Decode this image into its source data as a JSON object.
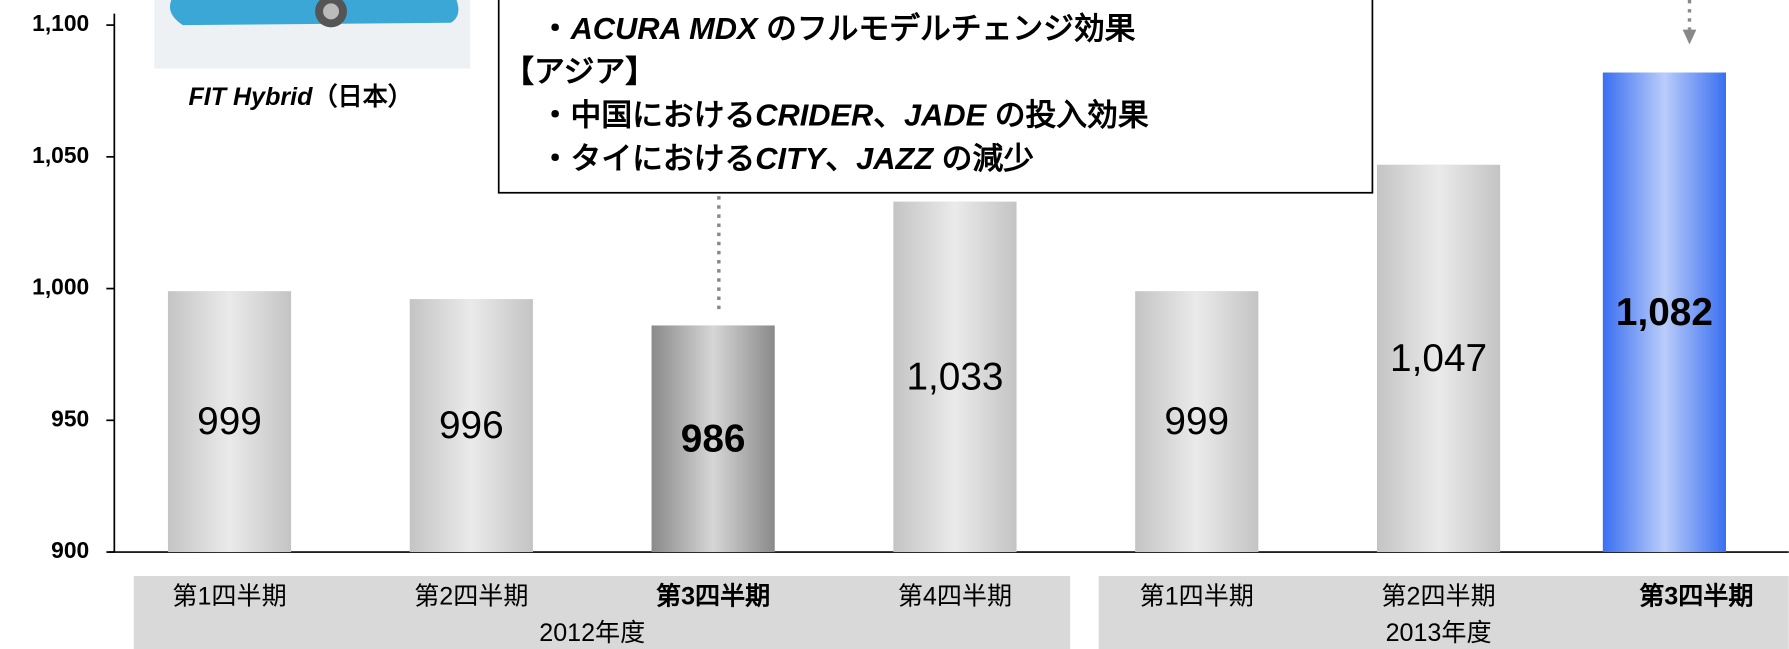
{
  "chart_data": {
    "type": "bar",
    "categories": [
      "第1四半期",
      "第2四半期",
      "第3四半期",
      "第4四半期",
      "第1四半期",
      "第2四半期",
      "第3四半期"
    ],
    "emphasis": [
      false,
      false,
      true,
      false,
      false,
      false,
      true
    ],
    "groups": [
      {
        "label": "2012年度",
        "span": [
          0,
          3
        ]
      },
      {
        "label": "2013年度",
        "span": [
          4,
          6
        ]
      }
    ],
    "values": [
      999,
      996,
      986,
      1033,
      999,
      1047,
      1082
    ],
    "value_labels": [
      "999",
      "996",
      "986",
      "1,033",
      "999",
      "1,047",
      "1,082"
    ],
    "colors": [
      "#c4c4c4",
      "#c4c4c4",
      "#8a8a8a",
      "#c4c4c4",
      "#c4c4c4",
      "#c4c4c4",
      "#3a6ff0"
    ],
    "ylim": [
      900,
      1100
    ],
    "yticks": [
      {
        "value": 900,
        "label": "900"
      },
      {
        "value": 950,
        "label": "950"
      },
      {
        "value": 1000,
        "label": "1,000"
      },
      {
        "value": 1050,
        "label": "1,050"
      },
      {
        "value": 1100,
        "label": "1,100"
      }
    ],
    "annotation": [
      [
        {
          "text": "・"
        },
        {
          "text": "ACURA MDX",
          "italic": true
        },
        {
          "text": " のフルモデルチェンジ効果"
        }
      ],
      [
        {
          "text": "【アジア】"
        }
      ],
      [
        {
          "text": "・中国における"
        },
        {
          "text": "CRIDER",
          "italic": true
        },
        {
          "text": "、"
        },
        {
          "text": "JADE",
          "italic": true
        },
        {
          "text": " の投入効果"
        }
      ],
      [
        {
          "text": "・タイにおける"
        },
        {
          "text": "CITY",
          "italic": true
        },
        {
          "text": "、"
        },
        {
          "text": "JAZZ",
          "italic": true
        },
        {
          "text": " の減少"
        }
      ]
    ],
    "caption": [
      {
        "text": "FIT Hybrid",
        "italic": true
      },
      {
        "text": "（日本）"
      }
    ]
  }
}
